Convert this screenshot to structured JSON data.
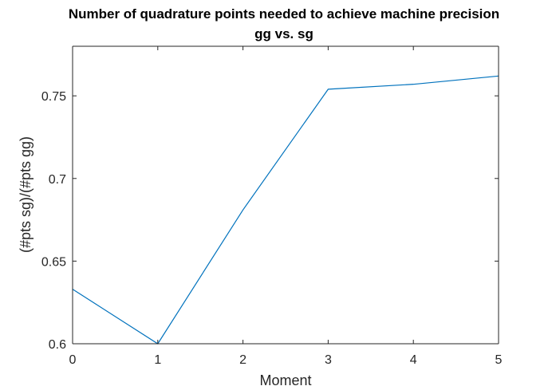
{
  "chart_data": {
    "type": "line",
    "title": "Number of quadrature points needed to achieve machine precision",
    "subtitle": "gg vs. sg",
    "xlabel": "Moment",
    "ylabel": "(#pts sg)/(#pts gg)",
    "xlim": [
      0,
      5
    ],
    "ylim": [
      0.6,
      0.78
    ],
    "xticks": [
      0,
      1,
      2,
      3,
      4,
      5
    ],
    "yticks": [
      0.6,
      0.65,
      0.7,
      0.75
    ],
    "ytick_labels": [
      "0.6",
      "0.65",
      "0.7",
      "0.75"
    ],
    "grid": false,
    "series": [
      {
        "color": "#0072BD",
        "x": [
          0,
          1,
          2,
          3,
          4,
          5
        ],
        "y": [
          0.633,
          0.6,
          0.681,
          0.754,
          0.757,
          0.762
        ]
      }
    ]
  }
}
